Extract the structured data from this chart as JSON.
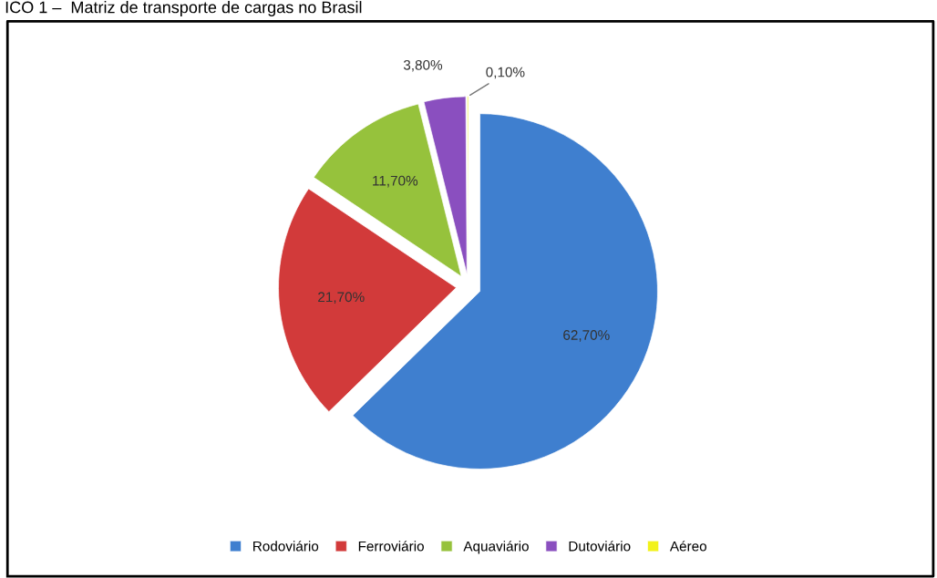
{
  "chart_data": {
    "type": "pie",
    "title": "ICO 1 –  Matriz de transporte de cargas no Brasil",
    "categories": [
      "Rodoviário",
      "Ferroviário",
      "Aquaviário",
      "Dutoviário",
      "Aéreo"
    ],
    "values": [
      62.7,
      21.7,
      11.7,
      3.8,
      0.1
    ],
    "colors": [
      "#3f7fcf",
      "#d23a3a",
      "#96c23c",
      "#8a4fbf",
      "#f2f21a"
    ],
    "value_labels": [
      "62,70%",
      "21,70%",
      "11,70%",
      "3,80%",
      "0,10%"
    ],
    "legend": "bottom"
  }
}
